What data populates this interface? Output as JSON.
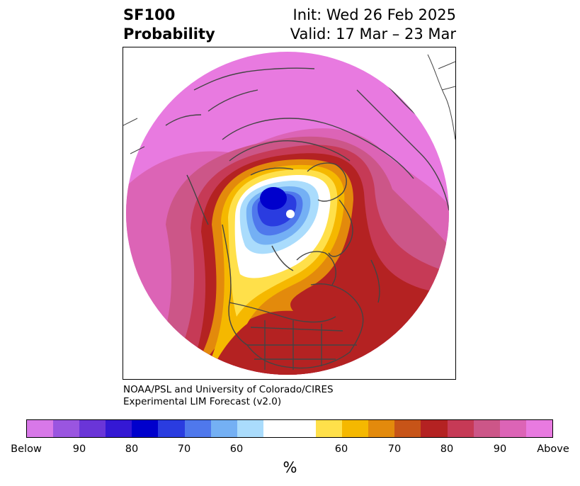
{
  "title": {
    "variable": "SF100",
    "subtitle": "Probability",
    "init": "Init: Wed 26 Feb 2025",
    "valid": "Valid: 17 Mar – 23 Mar"
  },
  "credit": {
    "line1": "NOAA/PSL and University of Colorado/CIRES",
    "line2": "Experimental LIM Forecast (v2.0)"
  },
  "colorbar": {
    "unit": "%",
    "colors": [
      "#d878e8",
      "#9a55e0",
      "#6a35d8",
      "#3418d4",
      "#0000cc",
      "#2a3ce0",
      "#4f78ec",
      "#74b0f4",
      "#aadcfc",
      "#ffffff",
      "#ffe04a",
      "#f5b800",
      "#e38a0c",
      "#c75418",
      "#b42222",
      "#c63a56",
      "#cc5688",
      "#dc64b6",
      "#e87ae0"
    ],
    "tick_labels": [
      "Below",
      "90",
      "80",
      "70",
      "60",
      "60",
      "70",
      "80",
      "90",
      "Above"
    ]
  },
  "map": {
    "projection": "polar-stereographic",
    "region": "Northern Hemisphere",
    "colors": {
      "above_max": "#e87ae0",
      "above_90": "#dc64b6",
      "above_80": "#cc5688",
      "above_70": "#c63a56",
      "above_60": "#b42222",
      "mid_high": "#e38a0c",
      "low_high": "#f5b800",
      "lowest_high": "#ffe04a",
      "below_60": "#aadcfc",
      "below_70": "#74b0f4",
      "below_80": "#4f78ec",
      "below_90": "#2a3ce0",
      "below_max": "#0000cc",
      "coast": "#444444"
    }
  }
}
